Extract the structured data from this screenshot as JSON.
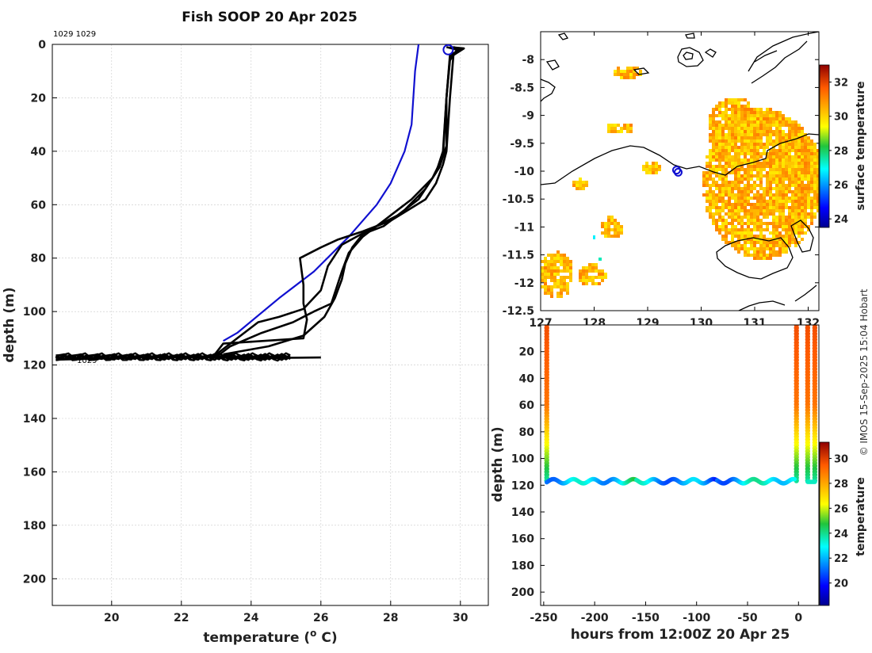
{
  "title": "Fish SOOP 20 Apr 2025",
  "credit": "© IMOS 15-Sep-2025 15:04 Hobart",
  "chart_data": [
    {
      "type": "line",
      "name": "temperature-depth-profile",
      "xlabel": "temperature (",
      "xlabel_sup": "o",
      "xlabel_tail": " C)",
      "ylabel": "depth (m)",
      "xlim": [
        18.3,
        30.8
      ],
      "ylim": [
        210,
        0
      ],
      "xticks": [
        20,
        22,
        24,
        26,
        28,
        30
      ],
      "yticks": [
        0,
        20,
        40,
        60,
        80,
        100,
        120,
        140,
        160,
        180,
        200
      ],
      "grid": true,
      "annotation_top": "1029 1029",
      "annotation_bottom": "1029",
      "series": [
        {
          "name": "reference-profile",
          "color": "#1010d0",
          "points": [
            [
              28.8,
              0
            ],
            [
              28.7,
              10
            ],
            [
              28.6,
              30
            ],
            [
              28.4,
              40
            ],
            [
              28.0,
              52
            ],
            [
              27.6,
              60
            ],
            [
              26.8,
              72
            ],
            [
              25.8,
              85
            ],
            [
              24.8,
              95
            ],
            [
              23.6,
              108
            ],
            [
              23.2,
              111
            ]
          ]
        },
        {
          "name": "cast-1",
          "color": "#000000",
          "points": [
            [
              29.7,
              1
            ],
            [
              30.1,
              1.5
            ],
            [
              29.8,
              4
            ],
            [
              29.7,
              20
            ],
            [
              29.6,
              40
            ],
            [
              29.5,
              45
            ],
            [
              29.3,
              52
            ],
            [
              29.0,
              58
            ],
            [
              28.0,
              66
            ],
            [
              27.2,
              70
            ],
            [
              26.5,
              73
            ],
            [
              26.0,
              76
            ],
            [
              25.4,
              80
            ],
            [
              25.5,
              90
            ],
            [
              25.5,
              97
            ],
            [
              25.6,
              103
            ],
            [
              25.5,
              110
            ],
            [
              23.2,
              112
            ],
            [
              22.9,
              117
            ]
          ]
        },
        {
          "name": "cast-2",
          "color": "#000000",
          "points": [
            [
              29.8,
              1
            ],
            [
              30.0,
              2
            ],
            [
              29.7,
              5
            ],
            [
              29.6,
              20
            ],
            [
              29.5,
              40
            ],
            [
              29.3,
              48
            ],
            [
              28.8,
              58
            ],
            [
              28.2,
              64
            ],
            [
              27.3,
              70
            ],
            [
              26.6,
              75
            ],
            [
              26.2,
              83
            ],
            [
              26.0,
              92
            ],
            [
              25.5,
              99
            ],
            [
              24.8,
              102
            ],
            [
              24.2,
              104
            ],
            [
              23.6,
              110
            ],
            [
              23.0,
              116
            ]
          ]
        },
        {
          "name": "cast-3",
          "color": "#000000",
          "points": [
            [
              29.6,
              1
            ],
            [
              29.9,
              2
            ],
            [
              29.7,
              6
            ],
            [
              29.6,
              20
            ],
            [
              29.5,
              42
            ],
            [
              29.2,
              50
            ],
            [
              28.6,
              58
            ],
            [
              27.8,
              66
            ],
            [
              27.2,
              72
            ],
            [
              26.8,
              78
            ],
            [
              26.6,
              85
            ],
            [
              26.3,
              97
            ],
            [
              25.8,
              100
            ],
            [
              25.2,
              104
            ],
            [
              24.3,
              108
            ],
            [
              23.4,
              113
            ],
            [
              23.0,
              117
            ]
          ]
        },
        {
          "name": "cast-4",
          "color": "#000000",
          "points": [
            [
              29.7,
              1
            ],
            [
              30.0,
              2
            ],
            [
              29.7,
              4
            ],
            [
              29.6,
              20
            ],
            [
              29.6,
              38
            ],
            [
              29.4,
              46
            ],
            [
              29.0,
              54
            ],
            [
              28.4,
              62
            ],
            [
              27.8,
              68
            ],
            [
              27.2,
              71
            ],
            [
              26.9,
              76
            ],
            [
              26.7,
              82
            ],
            [
              26.6,
              88
            ],
            [
              26.4,
              95
            ],
            [
              26.1,
              102
            ],
            [
              25.5,
              109
            ],
            [
              24.5,
              113
            ],
            [
              23.2,
              116
            ]
          ]
        },
        {
          "name": "bottom-trace",
          "color": "#000000",
          "points": [
            [
              18.4,
              118
            ],
            [
              20.0,
              117.5
            ],
            [
              21.5,
              117
            ],
            [
              23.0,
              117.2
            ],
            [
              24.0,
              117.6
            ],
            [
              25.0,
              117.3
            ],
            [
              26.0,
              117.2
            ]
          ]
        }
      ],
      "marker": {
        "name": "surface-position",
        "color": "#1010d0",
        "points": [
          [
            29.65,
            2
          ]
        ]
      }
    },
    {
      "type": "heatmap",
      "name": "surface-temperature-map",
      "xlim": [
        127,
        132.2
      ],
      "ylim": [
        -12.5,
        -7.5
      ],
      "xticks": [
        127,
        128,
        129,
        130,
        131,
        132
      ],
      "yticks": [
        -8,
        -8.5,
        -9,
        -9.5,
        -10,
        -10.5,
        -11,
        -11.5,
        -12,
        -12.5
      ],
      "colorbar": {
        "label": "surface temperature",
        "ticks": [
          24,
          26,
          28,
          30,
          32
        ],
        "range": [
          23.5,
          33
        ]
      },
      "track_points": [
        [
          129.54,
          -9.98
        ],
        [
          129.57,
          -10.02
        ]
      ],
      "tick_texts": [
        "127",
        "128",
        "129",
        "130",
        "131",
        "132"
      ]
    },
    {
      "type": "scatter",
      "name": "depth-time-section",
      "xlabel": "hours from 12:00Z 20 Apr 25",
      "ylabel": "depth (m)",
      "xlim": [
        -253,
        20
      ],
      "ylim": [
        210,
        0
      ],
      "xticks": [
        -250,
        -200,
        -150,
        -100,
        -50,
        0
      ],
      "yticks": [
        20,
        40,
        60,
        80,
        100,
        120,
        140,
        160,
        180,
        200
      ],
      "colorbar": {
        "label": "temperature",
        "ticks": [
          20,
          22,
          24,
          26,
          28,
          30
        ],
        "range": [
          18.2,
          31.3
        ]
      },
      "vertical_casts_hours": [
        -247,
        -2,
        9,
        16
      ],
      "bottom_depth": 117
    }
  ]
}
